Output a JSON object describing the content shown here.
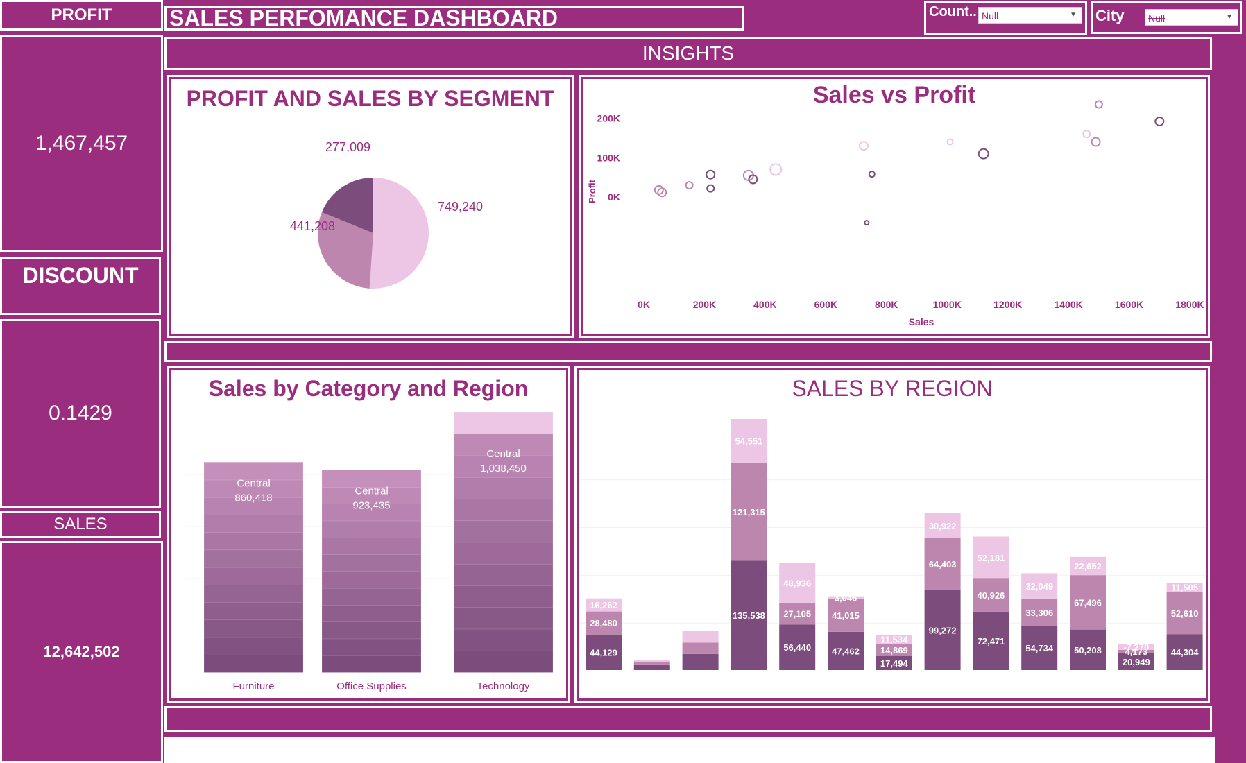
{
  "header": {
    "dashboard_title": "SALES PERFOMANCE DASHBOARD",
    "insights_label": "INSIGHTS"
  },
  "filters": {
    "country_label": "Count..",
    "country_value": "Null",
    "city_label": "City",
    "city_value": "Null"
  },
  "kpis": {
    "profit_label": "PROFIT",
    "profit_value": "1,467,457",
    "discount_label": "DISCOUNT",
    "discount_value": "0.1429",
    "sales_label": "SALES",
    "sales_value": "12,642,502"
  },
  "colors": {
    "brand": "#9b2d7f",
    "light": "#ecc6e4",
    "mid": "#bc86ae",
    "dark": "#7b4c7c"
  },
  "charts": {
    "pie_title": "PROFIT AND SALES BY SEGMENT",
    "scatter_title": "Sales vs Profit",
    "category_title": "Sales by Category and Region",
    "region_title": "SALES BY REGION"
  },
  "chart_data": [
    {
      "type": "pie",
      "title": "PROFIT AND SALES BY SEGMENT",
      "slices": [
        {
          "label": "749,240",
          "value": 749240
        },
        {
          "label": "441,208",
          "value": 441208
        },
        {
          "label": "277,009",
          "value": 277009
        }
      ]
    },
    {
      "type": "scatter",
      "title": "Sales vs Profit",
      "xlabel": "Sales",
      "ylabel": "Profit",
      "xlim": [
        0,
        1800000
      ],
      "ylim": [
        -100000,
        250000
      ],
      "xticks": [
        "0K",
        "200K",
        "400K",
        "600K",
        "800K",
        "1000K",
        "1200K",
        "1400K",
        "1600K",
        "1800K"
      ],
      "yticks": [
        "0K",
        "100K",
        "200K"
      ],
      "points": [
        {
          "x": 50000,
          "y": 18000,
          "r": 6,
          "shade": "mid"
        },
        {
          "x": 60000,
          "y": 12000,
          "r": 6,
          "shade": "mid"
        },
        {
          "x": 150000,
          "y": 30000,
          "r": 5,
          "shade": "mid"
        },
        {
          "x": 220000,
          "y": 57000,
          "r": 6,
          "shade": "dark"
        },
        {
          "x": 220000,
          "y": 22000,
          "r": 5,
          "shade": "dark"
        },
        {
          "x": 345000,
          "y": 55000,
          "r": 7,
          "shade": "mid"
        },
        {
          "x": 360000,
          "y": 45000,
          "r": 6,
          "shade": "dark"
        },
        {
          "x": 435000,
          "y": 70000,
          "r": 8,
          "shade": "light"
        },
        {
          "x": 725000,
          "y": 130000,
          "r": 6,
          "shade": "light"
        },
        {
          "x": 752000,
          "y": 58000,
          "r": 4,
          "shade": "dark"
        },
        {
          "x": 735000,
          "y": -65000,
          "r": 3,
          "shade": "dark"
        },
        {
          "x": 1010000,
          "y": 140000,
          "r": 4,
          "shade": "light"
        },
        {
          "x": 1120000,
          "y": 110000,
          "r": 7,
          "shade": "dark"
        },
        {
          "x": 1460000,
          "y": 160000,
          "r": 5,
          "shade": "light"
        },
        {
          "x": 1490000,
          "y": 140000,
          "r": 6,
          "shade": "mid"
        },
        {
          "x": 1500000,
          "y": 235000,
          "r": 5,
          "shade": "mid"
        },
        {
          "x": 1700000,
          "y": 192000,
          "r": 6,
          "shade": "dark"
        }
      ]
    },
    {
      "type": "bar",
      "title": "Sales by Category and Region",
      "categories": [
        "Furniture",
        "Office Supplies",
        "Technology"
      ],
      "totals": [
        3980000,
        3830000,
        4930000
      ],
      "segments": 12,
      "labels": [
        {
          "name": "Central",
          "value": "860,418"
        },
        {
          "name": "Central",
          "value": "923,435"
        },
        {
          "name": "Central",
          "value": "1,038,450"
        }
      ]
    },
    {
      "type": "bar",
      "title": "SALES BY REGION",
      "stacked": true,
      "series_order": [
        "bottom",
        "middle",
        "top"
      ],
      "bars": [
        {
          "values": [
            44129,
            28480,
            16262
          ],
          "labels": [
            "44,129",
            "28,480",
            "16,262"
          ]
        },
        {
          "values": [
            7000,
            3000,
            2000
          ],
          "labels": [
            "",
            "",
            ""
          ]
        },
        {
          "values": [
            20000,
            14000,
            15000
          ],
          "labels": [
            "",
            "",
            ""
          ]
        },
        {
          "values": [
            135538,
            121315,
            54551
          ],
          "labels": [
            "135,538",
            "121,315",
            "54,551"
          ]
        },
        {
          "values": [
            56440,
            27105,
            48936
          ],
          "labels": [
            "56,440",
            "27,105",
            "48,936"
          ]
        },
        {
          "values": [
            47462,
            41015,
            3046
          ],
          "labels": [
            "47,462",
            "41,015",
            "3,046"
          ]
        },
        {
          "values": [
            17494,
            14869,
            11534
          ],
          "labels": [
            "17,494",
            "14,869",
            "11,534"
          ]
        },
        {
          "values": [
            99272,
            64403,
            30922
          ],
          "labels": [
            "99,272",
            "64,403",
            "30,922"
          ]
        },
        {
          "values": [
            72471,
            40926,
            52181
          ],
          "labels": [
            "72,471",
            "40,926",
            "52,181"
          ]
        },
        {
          "values": [
            54734,
            33306,
            32049
          ],
          "labels": [
            "54,734",
            "33,306",
            "32,049"
          ]
        },
        {
          "values": [
            50208,
            67496,
            22652
          ],
          "labels": [
            "50,208",
            "67,496",
            "22,652"
          ]
        },
        {
          "values": [
            20949,
            4173,
            -7270
          ],
          "labels": [
            "20,949",
            "4,173",
            "-7,270"
          ]
        },
        {
          "values": [
            44304,
            52610,
            11505
          ],
          "labels": [
            "44,304",
            "52,610",
            "11,505"
          ]
        }
      ]
    }
  ]
}
